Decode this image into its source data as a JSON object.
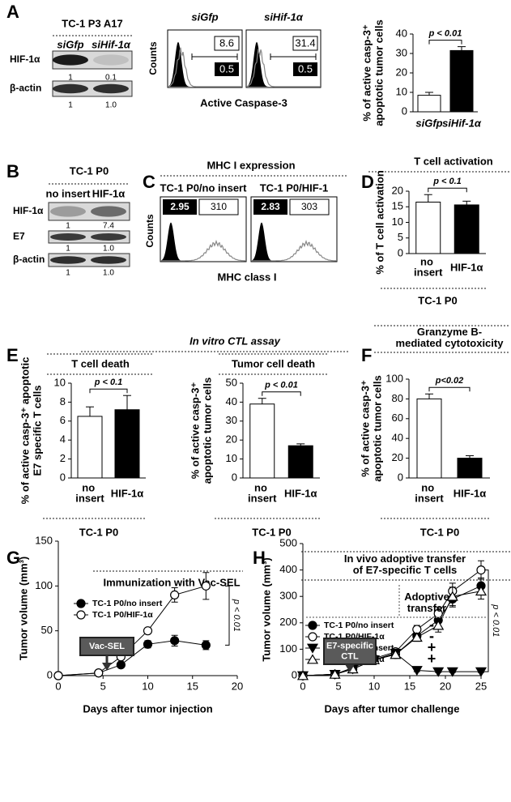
{
  "panels": {
    "A": {
      "letter": "A",
      "blot": {
        "title": "TC-1 P3 A17",
        "lanes": [
          "siGfp",
          "siHif-1α"
        ],
        "rows": [
          {
            "label": "HIF-1α",
            "quant": [
              "1",
              "0.1"
            ]
          },
          {
            "label": "β-actin",
            "quant": [
              "1",
              "1.0"
            ]
          }
        ]
      },
      "flow": {
        "ylabel": "Counts",
        "xlabel": "Active Caspase-3",
        "plots": [
          {
            "title": "siGfp",
            "gated": "8.6",
            "low": "0.5"
          },
          {
            "title": "siHif-1α",
            "gated": "31.4",
            "low": "0.5"
          }
        ]
      },
      "chart": {
        "type": "bar",
        "ylabel": [
          "% of active casp-3⁺",
          "apoptotic tumor cells"
        ],
        "categories": [
          "siGfp",
          "siHif-1α"
        ],
        "values": [
          8.5,
          31.5
        ],
        "errors": [
          1.5,
          2
        ],
        "colors": [
          "#ffffff",
          "#000000"
        ],
        "ylim": [
          0,
          40
        ],
        "yticks": [
          0,
          10,
          20,
          30,
          40
        ],
        "significance": "p < 0.01"
      }
    },
    "B": {
      "letter": "B",
      "blot": {
        "title": "TC-1 P0",
        "lanes": [
          "no insert",
          "HIF-1α"
        ],
        "rows": [
          {
            "label": "HIF-1α",
            "quant": [
              "1",
              "7.4"
            ]
          },
          {
            "label": "E7",
            "quant": [
              "1",
              "1.0"
            ]
          },
          {
            "label": "β-actin",
            "quant": [
              "1",
              "1.0"
            ]
          }
        ]
      }
    },
    "C": {
      "letter": "C",
      "title": "MHC I expression",
      "flow": {
        "ylabel": "Counts",
        "xlabel": "MHC class I",
        "plots": [
          {
            "title": "TC-1 P0/no insert",
            "low": "2.95",
            "gated": "310"
          },
          {
            "title": "TC-1 P0/HIF-1",
            "low": "2.83",
            "gated": "303"
          }
        ]
      }
    },
    "D": {
      "letter": "D",
      "title": "T cell activation",
      "chart": {
        "type": "bar",
        "ylabel": "% of T cell activation",
        "categories": [
          "no insert",
          "HIF-1α"
        ],
        "values": [
          16.5,
          15.6
        ],
        "errors": [
          2.4,
          1.2
        ],
        "colors": [
          "#ffffff",
          "#000000"
        ],
        "ylim": [
          0,
          20
        ],
        "yticks": [
          0,
          5,
          10,
          15,
          20
        ],
        "significance": "p < 0.1",
        "footer": "TC-1 P0"
      }
    },
    "E": {
      "letter": "E",
      "title": "In vitro CTL assay",
      "charts": [
        {
          "type": "bar",
          "title": "T cell death",
          "ylabel": [
            "% of active casp-3⁺ apoptotic",
            "E7 specific T cells"
          ],
          "categories": [
            "no insert",
            "HIF-1α"
          ],
          "values": [
            6.5,
            7.2
          ],
          "errors": [
            1,
            1.5
          ],
          "colors": [
            "#ffffff",
            "#000000"
          ],
          "ylim": [
            0,
            10
          ],
          "yticks": [
            0,
            2,
            4,
            6,
            8,
            10
          ],
          "significance": "p < 0.1",
          "footer": "TC-1 P0"
        },
        {
          "type": "bar",
          "title": "Tumor cell death",
          "ylabel": [
            "% of active casp-3⁺",
            "apoptotic tumor cells"
          ],
          "categories": [
            "no insert",
            "HIF-1α"
          ],
          "values": [
            39,
            17
          ],
          "errors": [
            3,
            1
          ],
          "colors": [
            "#ffffff",
            "#000000"
          ],
          "ylim": [
            0,
            50
          ],
          "yticks": [
            0,
            10,
            20,
            30,
            40,
            50
          ],
          "significance": "p < 0.01",
          "footer": "TC-1 P0"
        }
      ]
    },
    "F": {
      "letter": "F",
      "title": [
        "Granzyme B-",
        "mediated cytotoxicity"
      ],
      "chart": {
        "type": "bar",
        "ylabel": [
          "% of active casp-3⁺",
          "apoptotic tumor cells"
        ],
        "categories": [
          "no insert",
          "HIF-1α"
        ],
        "values": [
          80,
          20
        ],
        "errors": [
          5,
          2.5
        ],
        "colors": [
          "#ffffff",
          "#000000"
        ],
        "ylim": [
          0,
          100
        ],
        "yticks": [
          0,
          20,
          40,
          60,
          80,
          100
        ],
        "significance": "p<0.02",
        "footer": "TC-1 P0"
      }
    },
    "G": {
      "letter": "G",
      "title": "Immunization with Vac-SEL",
      "chart": {
        "type": "line",
        "xlabel": "Days after tumor injection",
        "ylabel": "Tumor volume (mm³)",
        "x": [
          0,
          4.5,
          7,
          10,
          13,
          16.5
        ],
        "xlim": [
          0,
          20
        ],
        "xticks": [
          0,
          5,
          10,
          15,
          20
        ],
        "ylim": [
          0,
          150
        ],
        "yticks": [
          0,
          50,
          100,
          150
        ],
        "series": [
          {
            "name": "TC-1 P0/no insert",
            "marker": "circle",
            "filled": true,
            "values": [
              0,
              3,
              12,
              35,
              39,
              34
            ],
            "errors": [
              0,
              1,
              2,
              4,
              6,
              5
            ]
          },
          {
            "name": "TC-1 P0/HIF-1α",
            "marker": "circle",
            "filled": false,
            "values": [
              0,
              3,
              21,
              50,
              90,
              100
            ],
            "errors": [
              0,
              1,
              2,
              3,
              8,
              15
            ]
          }
        ],
        "arrow_label": [
          "Vac-SEL"
        ],
        "significance": "p < 0.01"
      }
    },
    "H": {
      "letter": "H",
      "title": [
        "In vivo adoptive transfer",
        "of E7-specific T cells"
      ],
      "chart": {
        "type": "line",
        "xlabel": "Days after tumor challenge",
        "ylabel": "Tumor volume (mm³)",
        "x": [
          0,
          4.5,
          7,
          10,
          13,
          16,
          19,
          21,
          25
        ],
        "xlim": [
          0,
          25
        ],
        "xticks": [
          0,
          5,
          10,
          15,
          20,
          25
        ],
        "ylim": [
          0,
          500
        ],
        "yticks": [
          0,
          100,
          200,
          300,
          400,
          500
        ],
        "series": [
          {
            "name": "TC-1 P0/no insert",
            "marker": "circle",
            "filled": true,
            "transfer": "-",
            "values": [
              0,
              5,
              25,
              60,
              80,
              150,
              210,
              290,
              340
            ],
            "errors": [
              0,
              2,
              3,
              5,
              8,
              15,
              25,
              30,
              30
            ]
          },
          {
            "name": "TC-1 P0/HIF-1α",
            "marker": "circle",
            "filled": false,
            "transfer": "-",
            "values": [
              0,
              5,
              30,
              65,
              90,
              175,
              235,
              320,
              400
            ],
            "errors": [
              0,
              2,
              3,
              5,
              10,
              15,
              25,
              30,
              35
            ]
          },
          {
            "name": "TC-1 P0/no insert",
            "marker": "triangle-down",
            "filled": true,
            "transfer": "+",
            "values": [
              0,
              5,
              25,
              60,
              85,
              20,
              15,
              15,
              15
            ],
            "errors": [
              0,
              2,
              3,
              5,
              8,
              5,
              3,
              3,
              3
            ]
          },
          {
            "name": "TC-1 P0/HIF-1α",
            "marker": "triangle-up",
            "filled": false,
            "transfer": "+",
            "values": [
              0,
              5,
              25,
              60,
              80,
              145,
              190,
              300,
              320
            ],
            "errors": [
              0,
              2,
              3,
              5,
              8,
              15,
              25,
              35,
              30
            ]
          }
        ],
        "transfer_label": [
          "Adoptive",
          "transfer"
        ],
        "arrow_label": [
          "E7-specific",
          "CTL"
        ],
        "significance": "p < 0.01"
      }
    }
  }
}
